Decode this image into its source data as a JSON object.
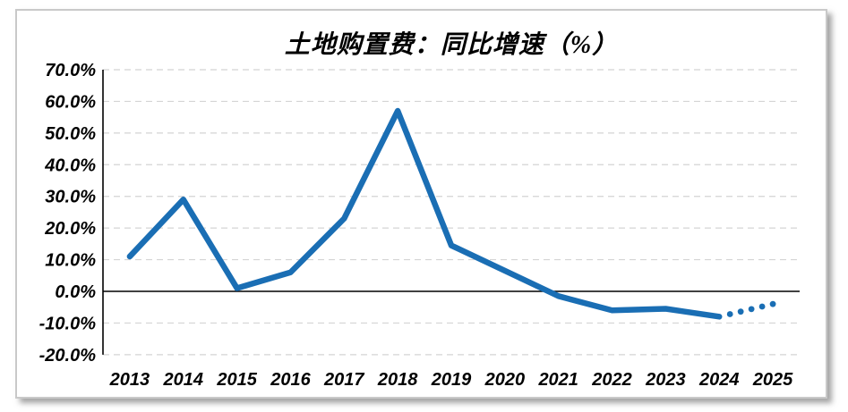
{
  "chart_data": {
    "type": "line",
    "title": "土地购置费：同比增速（%）",
    "categories": [
      "2013",
      "2014",
      "2015",
      "2016",
      "2017",
      "2018",
      "2019",
      "2020",
      "2021",
      "2022",
      "2023",
      "2024",
      "2025"
    ],
    "series": [
      {
        "name": "土地购置费同比增速",
        "values": [
          11,
          29,
          1,
          6,
          23,
          57,
          14.5,
          6.5,
          -1.5,
          -6,
          -5.5,
          -8,
          -4
        ],
        "solid_range": [
          "2013",
          "2024"
        ],
        "dotted_range": [
          "2024",
          "2025"
        ],
        "dotted_style": "round-dots",
        "dot_count": 5
      }
    ],
    "xlabel": "",
    "ylabel": "",
    "ylim": [
      -20,
      70
    ],
    "ytick_step": 10,
    "ytick_labels": [
      "70.0%",
      "60.0%",
      "50.0%",
      "40.0%",
      "30.0%",
      "20.0%",
      "10.0%",
      "0.0%",
      "-10.0%",
      "-20.0%"
    ],
    "grid": "dashed horizontal",
    "legend": "none",
    "colors": {
      "line": "#1a6eb4",
      "grid": "#d4d4d4",
      "axis": "#000000",
      "zero_line": "#000000",
      "frame_border": "#c9c9c9",
      "background": "#ffffff",
      "text": "#000000"
    }
  }
}
